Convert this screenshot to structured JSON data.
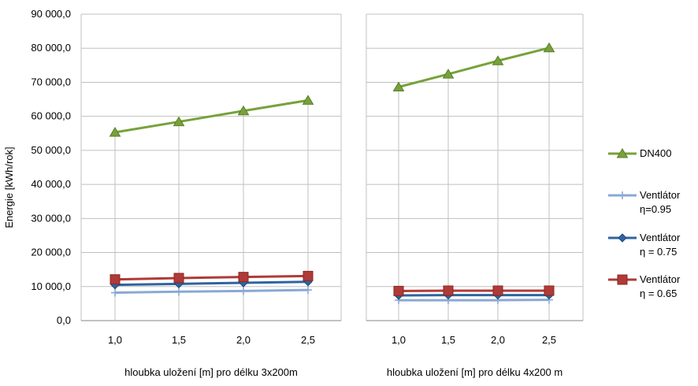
{
  "chart_data": {
    "type": "line",
    "ylabel": "Energie [kWh/rok]",
    "ylim": [
      0,
      90000
    ],
    "yticks": [
      "0,0",
      "10 000,0",
      "20 000,0",
      "30 000,0",
      "40 000,0",
      "50 000,0",
      "60 000,0",
      "70 000,0",
      "80 000,0",
      "90 000,0"
    ],
    "grid": "vertical",
    "legend_position": "right",
    "colors": {
      "DN400": "#77a23a",
      "Ventlator095": "#8aa8d4",
      "Ventlator075": "#2e64a0",
      "Ventlator065": "#b03a37",
      "gridline": "#c0c0c0",
      "axis": "#868686"
    },
    "panels": [
      {
        "xlabel": "hloubka uložení [m] pro délku 3x200m",
        "categories": [
          "1,0",
          "1,5",
          "2,0",
          "2,5"
        ],
        "series": [
          {
            "key": "DN400",
            "values": [
              55300,
              58400,
              61600,
              64700
            ]
          },
          {
            "key": "Ventlator095",
            "values": [
              8200,
              8500,
              8700,
              9000
            ]
          },
          {
            "key": "Ventlator075",
            "values": [
              10500,
              10800,
              11100,
              11400
            ]
          },
          {
            "key": "Ventlator065",
            "values": [
              12100,
              12500,
              12800,
              13100
            ]
          }
        ]
      },
      {
        "xlabel": "hloubka uložení [m] pro délku 4x200 m",
        "categories": [
          "1,0",
          "1,5",
          "2,0",
          "2,5"
        ],
        "series": [
          {
            "key": "DN400",
            "values": [
              68600,
              72400,
              76300,
              80100
            ]
          },
          {
            "key": "Ventlator095",
            "values": [
              6000,
              6000,
              6000,
              6100
            ]
          },
          {
            "key": "Ventlator075",
            "values": [
              7400,
              7500,
              7500,
              7500
            ]
          },
          {
            "key": "Ventlator065",
            "values": [
              8700,
              8800,
              8800,
              8800
            ]
          }
        ]
      }
    ],
    "legend": [
      {
        "key": "DN400",
        "line1": "DN400",
        "line2": "",
        "marker": "triangle"
      },
      {
        "key": "Ventlator095",
        "line1": "Ventlátor",
        "line2": "η=0.95",
        "marker": "plus"
      },
      {
        "key": "Ventlator075",
        "line1": "Ventlátor",
        "line2": "η = 0.75",
        "marker": "diamond"
      },
      {
        "key": "Ventlator065",
        "line1": "Ventlátor",
        "line2": "η = 0.65",
        "marker": "square"
      }
    ]
  }
}
